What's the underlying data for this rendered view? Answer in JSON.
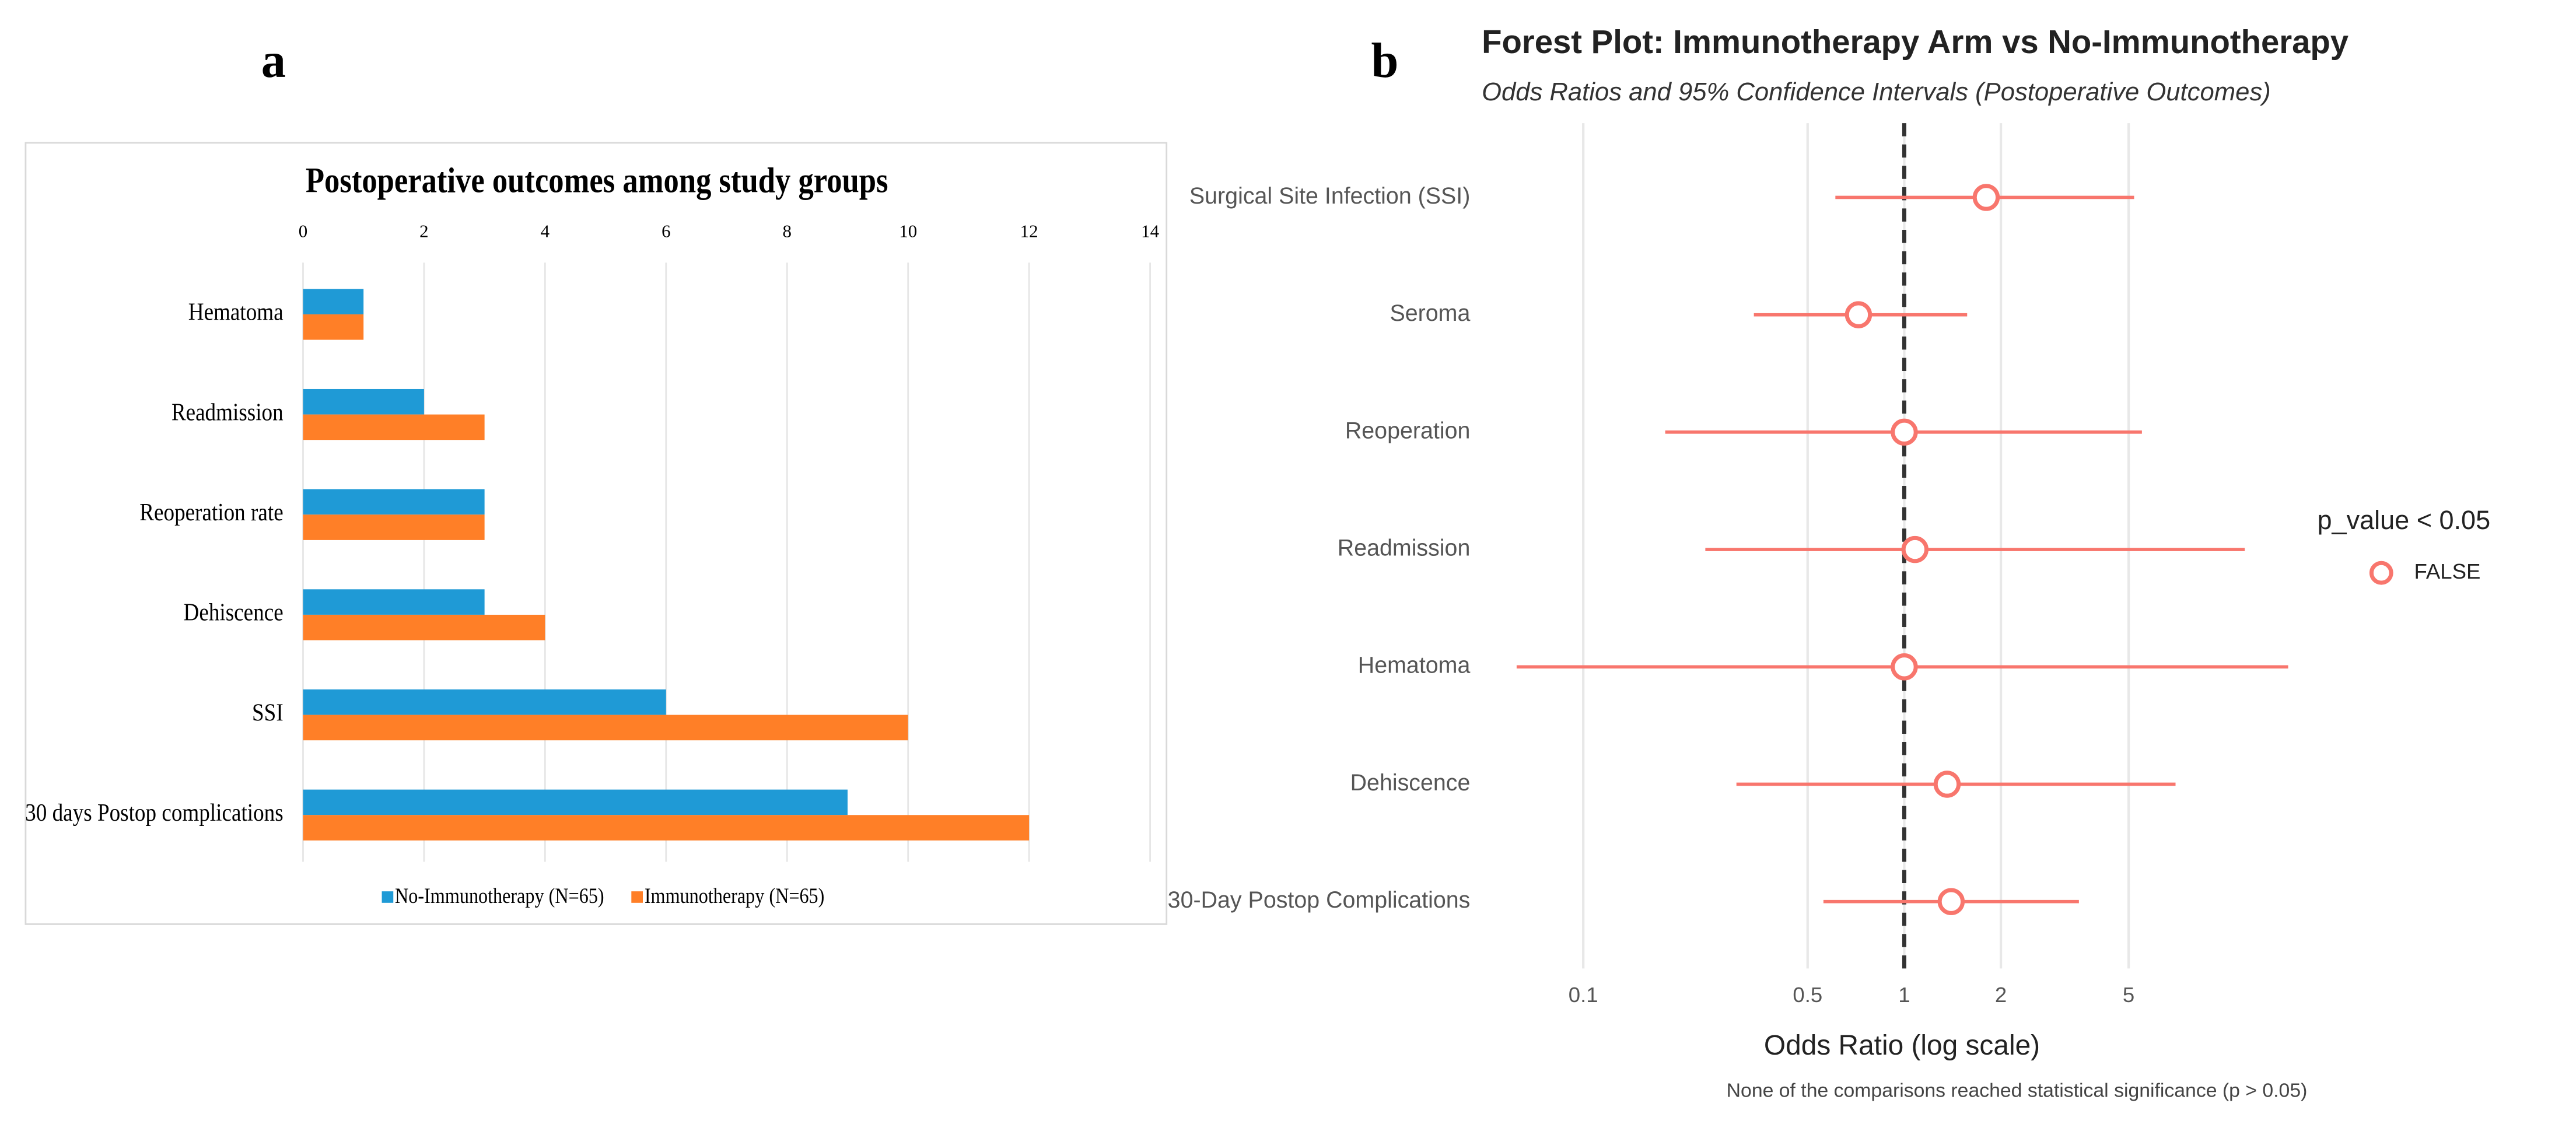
{
  "chart_data": [
    {
      "type": "hbar",
      "panel_label": "a",
      "title": "Postoperative outcomes among study groups",
      "categories": [
        "Hematoma",
        "Readmission",
        "Reoperation rate",
        "Dehiscence",
        "SSI",
        "30 days Postop complications"
      ],
      "series": [
        {
          "name": "No-Immunotherapy (N=65)",
          "color": "#1f9ad6",
          "values": [
            1,
            2,
            3,
            3,
            6,
            9
          ]
        },
        {
          "name": "Immunotherapy (N=65)",
          "color": "#ff7f27",
          "values": [
            1,
            3,
            3,
            4,
            10,
            12
          ]
        }
      ],
      "xlim": [
        0,
        14
      ],
      "xticks": [
        0,
        2,
        4,
        6,
        8,
        10,
        12,
        14
      ],
      "grid": true,
      "legend": "bottom"
    },
    {
      "type": "forest",
      "panel_label": "b",
      "title": "Forest Plot: Immunotherapy Arm vs No-Immunotherapy",
      "subtitle": "Odds Ratios and 95% Confidence Intervals (Postoperative Outcomes)",
      "x_label": "Odds Ratio (log scale)",
      "caption": "None of the comparisons reached statistical significance (p > 0.05)",
      "categories": [
        "Surgical Site Infection (SSI)",
        "Seroma",
        "Reoperation",
        "Readmission",
        "Hematoma",
        "Dehiscence",
        "30-Day Postop Complications"
      ],
      "legend_title": "p_value < 0.05",
      "series": [
        {
          "name": "FALSE",
          "color": "#f8766d",
          "values": [
            1.8,
            0.72,
            1.0,
            1.08,
            1.0,
            1.36,
            1.4
          ],
          "lower": [
            0.61,
            0.34,
            0.18,
            0.24,
            0.062,
            0.3,
            0.56
          ],
          "upper": [
            5.2,
            1.57,
            5.5,
            11.5,
            15.7,
            7.0,
            3.5
          ]
        }
      ],
      "xscale": "log",
      "xlim": [
        0.05,
        17
      ],
      "xticks": [
        0.1,
        0.5,
        1,
        2,
        5
      ],
      "reference_line": 1,
      "grid": true,
      "legend": "right"
    }
  ]
}
